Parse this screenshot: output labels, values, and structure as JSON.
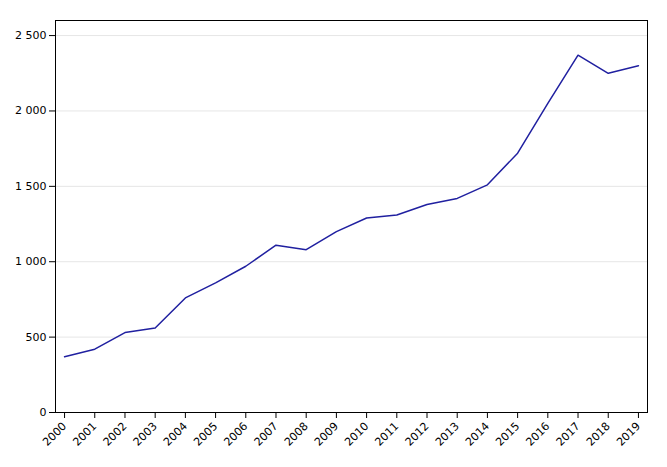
{
  "chart_data": {
    "type": "line",
    "x": [
      2000,
      2001,
      2002,
      2003,
      2004,
      2005,
      2006,
      2007,
      2008,
      2009,
      2010,
      2011,
      2012,
      2013,
      2014,
      2015,
      2016,
      2017,
      2018,
      2019
    ],
    "values": [
      370,
      420,
      530,
      560,
      760,
      860,
      970,
      1110,
      1080,
      1200,
      1290,
      1310,
      1380,
      1420,
      1510,
      1720,
      2050,
      2370,
      2250,
      2300
    ],
    "color": "#2020a0",
    "xlim": [
      1999.7,
      2019.3
    ],
    "xticks": [
      2000,
      2001,
      2002,
      2003,
      2004,
      2005,
      2006,
      2007,
      2008,
      2009,
      2010,
      2011,
      2012,
      2013,
      2014,
      2015,
      2016,
      2017,
      2018,
      2019
    ],
    "ylim": [
      0,
      2600
    ],
    "yticks": [
      0,
      500,
      {
        "value": 1000,
        "label": "1 000"
      },
      {
        "value": 1500,
        "label": "1 500"
      },
      {
        "value": 2000,
        "label": "2 000"
      },
      {
        "value": 2500,
        "label": "2 500"
      }
    ],
    "grid": "y"
  }
}
